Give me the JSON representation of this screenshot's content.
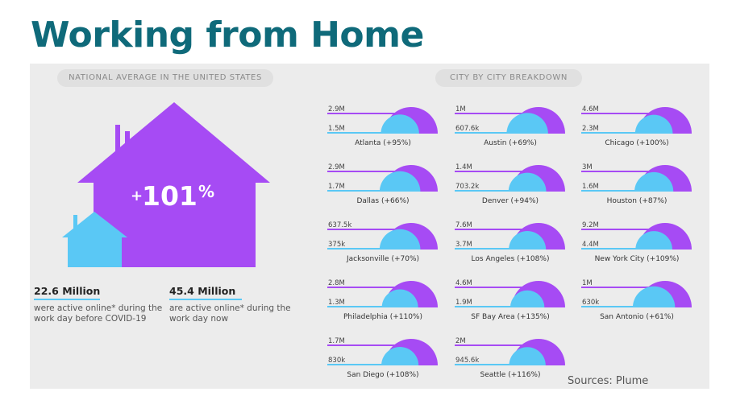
{
  "title": "Working from Home",
  "national": {
    "header": "NATIONAL AVERAGE IN THE UNITED STATES",
    "change": "101",
    "change_prefix": "+",
    "change_suffix": "%",
    "before": {
      "value": "22.6 Million",
      "desc": "were active online* during the work day before COVID-19"
    },
    "now": {
      "value": "45.4 Million",
      "desc": "are active online* during the work day now"
    }
  },
  "city_header": "CITY BY CITY BREAKDOWN",
  "source": "Sources: Plume",
  "colors": {
    "now": "#a64bf4",
    "before": "#5ac8f5",
    "title": "#0f6a7a"
  },
  "chart_data": {
    "type": "bar",
    "series": [
      {
        "name": "before",
        "unit": "people online during work day"
      },
      {
        "name": "now",
        "unit": "people online during work day"
      }
    ],
    "cities": [
      {
        "name": "Atlanta",
        "change": "(+95%)",
        "before": "1.5M",
        "now": "2.9M",
        "before_value": 1500000,
        "now_value": 2900000
      },
      {
        "name": "Austin",
        "change": "(+69%)",
        "before": "607.6k",
        "now": "1M",
        "before_value": 607600,
        "now_value": 1000000
      },
      {
        "name": "Chicago",
        "change": "(+100%)",
        "before": "2.3M",
        "now": "4.6M",
        "before_value": 2300000,
        "now_value": 4600000
      },
      {
        "name": "Dallas",
        "change": "(+66%)",
        "before": "1.7M",
        "now": "2.9M",
        "before_value": 1700000,
        "now_value": 2900000
      },
      {
        "name": "Denver",
        "change": "(+94%)",
        "before": "703.2k",
        "now": "1.4M",
        "before_value": 703200,
        "now_value": 1400000
      },
      {
        "name": "Houston",
        "change": "(+87%)",
        "before": "1.6M",
        "now": "3M",
        "before_value": 1600000,
        "now_value": 3000000
      },
      {
        "name": "Jacksonville",
        "change": "(+70%)",
        "before": "375k",
        "now": "637.5k",
        "before_value": 375000,
        "now_value": 637500
      },
      {
        "name": "Los Angeles",
        "change": "(+108%)",
        "before": "3.7M",
        "now": "7.6M",
        "before_value": 3700000,
        "now_value": 7600000
      },
      {
        "name": "New York City",
        "change": "(+109%)",
        "before": "4.4M",
        "now": "9.2M",
        "before_value": 4400000,
        "now_value": 9200000
      },
      {
        "name": "Philadelphia",
        "change": "(+110%)",
        "before": "1.3M",
        "now": "2.8M",
        "before_value": 1300000,
        "now_value": 2800000
      },
      {
        "name": "SF Bay Area",
        "change": "(+135%)",
        "before": "1.9M",
        "now": "4.6M",
        "before_value": 1900000,
        "now_value": 4600000
      },
      {
        "name": "San Antonio",
        "change": "(+61%)",
        "before": "630k",
        "now": "1M",
        "before_value": 630000,
        "now_value": 1000000
      },
      {
        "name": "San Diego",
        "change": "(+108%)",
        "before": "830k",
        "now": "1.7M",
        "before_value": 830000,
        "now_value": 1700000
      },
      {
        "name": "Seattle",
        "change": "(+116%)",
        "before": "945.6k",
        "now": "2M",
        "before_value": 945600,
        "now_value": 2000000
      }
    ]
  }
}
